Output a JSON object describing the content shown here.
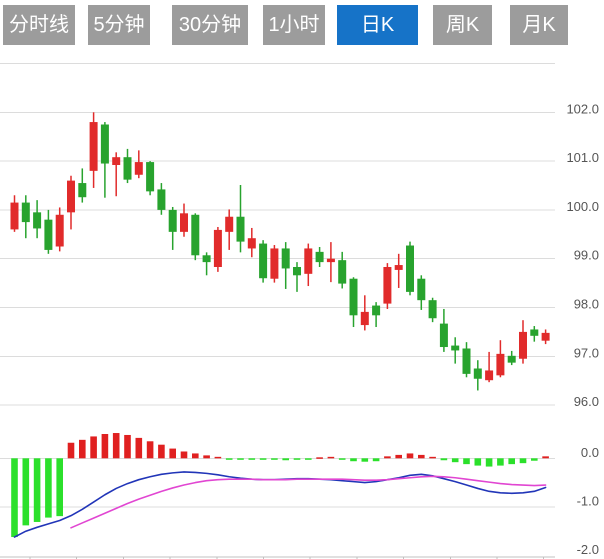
{
  "toolbar": {
    "tabs": [
      {
        "id": "time-line",
        "label": "分时线",
        "active": false
      },
      {
        "id": "5min",
        "label": "5分钟",
        "active": false
      },
      {
        "id": "30min",
        "label": "30分钟",
        "active": false
      },
      {
        "id": "1hour",
        "label": "1小时",
        "active": false
      },
      {
        "id": "daily-k",
        "label": "日K",
        "active": true
      },
      {
        "id": "weekly-k",
        "label": "周K",
        "active": false
      },
      {
        "id": "monthly-k",
        "label": "月K",
        "active": false
      }
    ]
  },
  "price_axis": {
    "labels": [
      "102.0",
      "101.0",
      "100.0",
      "99.0",
      "98.0",
      "97.0",
      "96.0"
    ]
  },
  "macd_axis": {
    "labels": [
      "0.0",
      "-1.0",
      "-2.0"
    ]
  },
  "colors": {
    "candle_up": "#e12b2b",
    "candle_down": "#28a32e",
    "hist_up": "#e02020",
    "hist_down": "#2be02b",
    "dif_line": "#2135b8",
    "dea_line": "#e146d2",
    "tab_bg": "#9c9c9c",
    "tab_active_bg": "#1673c8",
    "tab_text": "#ffffff",
    "grid": "#dcdcdc",
    "axis_line": "#c0c0c0",
    "axis_text": "#555555"
  },
  "chart_data": {
    "type": "candlestick",
    "title": "Daily K-line (日K) with MACD sub-chart",
    "panels": [
      "price",
      "macd"
    ],
    "price_ylim": [
      95.8,
      103.0
    ],
    "price_gridlines": [
      103.0,
      102.0,
      101.0,
      100.0,
      99.0,
      98.0,
      97.0,
      96.0
    ],
    "legend": "none",
    "candles_format": [
      "open",
      "high",
      "low",
      "close"
    ],
    "candles": [
      [
        99.6,
        100.3,
        99.55,
        100.15
      ],
      [
        100.15,
        100.3,
        99.42,
        99.75
      ],
      [
        99.95,
        100.2,
        99.42,
        99.62
      ],
      [
        99.8,
        100.0,
        99.1,
        99.18
      ],
      [
        99.25,
        100.05,
        99.15,
        99.9
      ],
      [
        99.95,
        100.7,
        99.6,
        100.6
      ],
      [
        100.55,
        100.85,
        100.15,
        100.26
      ],
      [
        100.8,
        102.0,
        100.45,
        101.8
      ],
      [
        101.75,
        101.8,
        100.25,
        100.95
      ],
      [
        100.92,
        101.18,
        100.28,
        101.08
      ],
      [
        101.08,
        101.25,
        100.55,
        100.62
      ],
      [
        100.72,
        101.22,
        100.65,
        100.98
      ],
      [
        100.98,
        101.0,
        100.3,
        100.38
      ],
      [
        100.42,
        100.55,
        99.9,
        100.0
      ],
      [
        100.0,
        100.06,
        99.18,
        99.55
      ],
      [
        99.55,
        100.13,
        99.45,
        99.93
      ],
      [
        99.9,
        99.93,
        98.97,
        99.07
      ],
      [
        99.07,
        99.13,
        98.66,
        98.93
      ],
      [
        98.83,
        99.65,
        98.73,
        99.59
      ],
      [
        99.55,
        100.01,
        99.18,
        99.86
      ],
      [
        99.86,
        100.51,
        99.13,
        99.35
      ],
      [
        99.21,
        99.63,
        99.03,
        99.42
      ],
      [
        99.31,
        99.38,
        98.51,
        98.6
      ],
      [
        98.59,
        99.28,
        98.51,
        99.21
      ],
      [
        99.21,
        99.34,
        98.38,
        98.8
      ],
      [
        98.83,
        98.93,
        98.32,
        98.66
      ],
      [
        98.69,
        99.31,
        98.44,
        99.21
      ],
      [
        99.14,
        99.24,
        98.83,
        98.93
      ],
      [
        98.93,
        99.34,
        98.52,
        99.0
      ],
      [
        98.97,
        99.14,
        98.39,
        98.49
      ],
      [
        98.59,
        98.62,
        97.6,
        97.84
      ],
      [
        97.64,
        98.25,
        97.53,
        97.91
      ],
      [
        98.04,
        98.11,
        97.6,
        97.84
      ],
      [
        98.08,
        98.91,
        97.97,
        98.83
      ],
      [
        98.77,
        99.1,
        98.4,
        98.87
      ],
      [
        99.27,
        99.35,
        98.25,
        98.32
      ],
      [
        98.59,
        98.66,
        97.95,
        98.15
      ],
      [
        98.15,
        98.2,
        97.7,
        97.78
      ],
      [
        97.67,
        97.97,
        97.09,
        97.19
      ],
      [
        97.22,
        97.39,
        96.85,
        97.12
      ],
      [
        97.16,
        97.29,
        96.57,
        96.64
      ],
      [
        96.75,
        96.92,
        96.3,
        96.54
      ],
      [
        96.51,
        97.09,
        96.47,
        96.71
      ],
      [
        96.61,
        97.33,
        96.57,
        97.05
      ],
      [
        97.01,
        97.11,
        96.82,
        96.87
      ],
      [
        96.95,
        97.74,
        96.85,
        97.5
      ],
      [
        97.55,
        97.62,
        97.3,
        97.42
      ],
      [
        97.32,
        97.55,
        97.25,
        97.48
      ]
    ],
    "macd": {
      "ylim": [
        -2.2,
        0.6
      ],
      "gridlines": [
        0.0,
        -1.0,
        -2.0
      ],
      "hist": [
        -1.62,
        -1.38,
        -1.31,
        -1.22,
        -1.19,
        0.32,
        0.38,
        0.45,
        0.5,
        0.52,
        0.48,
        0.42,
        0.35,
        0.28,
        0.2,
        0.14,
        0.1,
        0.06,
        0.03,
        -0.02,
        -0.03,
        -0.03,
        -0.02,
        -0.03,
        -0.04,
        -0.03,
        -0.02,
        0.02,
        0.03,
        -0.03,
        -0.06,
        -0.07,
        -0.06,
        0.04,
        0.07,
        0.1,
        0.07,
        0.03,
        -0.04,
        -0.08,
        -0.12,
        -0.15,
        -0.17,
        -0.15,
        -0.12,
        -0.1,
        -0.05,
        0.04
      ],
      "dif": [
        -1.62,
        -1.5,
        -1.42,
        -1.35,
        -1.28,
        -1.18,
        -1.05,
        -0.9,
        -0.75,
        -0.62,
        -0.52,
        -0.44,
        -0.38,
        -0.33,
        -0.3,
        -0.28,
        -0.29,
        -0.31,
        -0.34,
        -0.38,
        -0.41,
        -0.43,
        -0.44,
        -0.44,
        -0.43,
        -0.42,
        -0.42,
        -0.43,
        -0.44,
        -0.46,
        -0.48,
        -0.5,
        -0.48,
        -0.44,
        -0.4,
        -0.35,
        -0.33,
        -0.36,
        -0.42,
        -0.48,
        -0.55,
        -0.62,
        -0.68,
        -0.71,
        -0.72,
        -0.71,
        -0.68,
        -0.6
      ],
      "dea": [
        null,
        null,
        null,
        null,
        null,
        -1.43,
        -1.33,
        -1.23,
        -1.13,
        -1.03,
        -0.93,
        -0.84,
        -0.76,
        -0.68,
        -0.61,
        -0.55,
        -0.5,
        -0.46,
        -0.44,
        -0.43,
        -0.43,
        -0.43,
        -0.44,
        -0.44,
        -0.44,
        -0.43,
        -0.43,
        -0.43,
        -0.43,
        -0.43,
        -0.44,
        -0.45,
        -0.45,
        -0.44,
        -0.42,
        -0.4,
        -0.38,
        -0.37,
        -0.38,
        -0.4,
        -0.43,
        -0.46,
        -0.49,
        -0.52,
        -0.54,
        -0.55,
        -0.56,
        -0.55
      ]
    }
  }
}
